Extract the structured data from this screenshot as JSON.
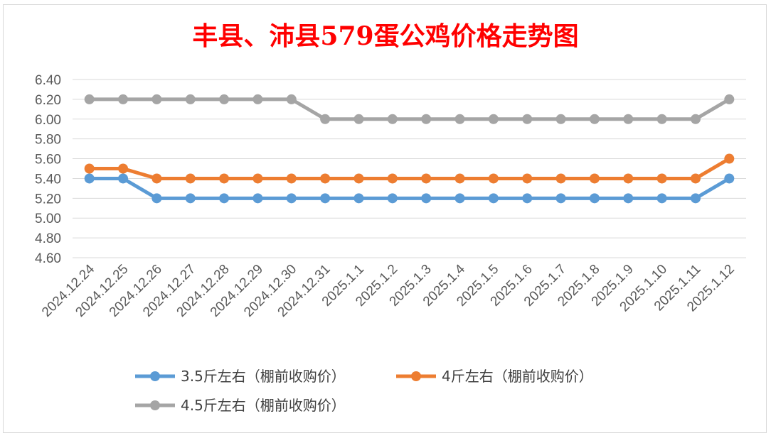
{
  "chart_data": {
    "type": "line",
    "title": "丰县、沛县579蛋公鸡价格走势图",
    "categories": [
      "2024.12.24",
      "2024.12.25",
      "2024.12.26",
      "2024.12.27",
      "2024.12.28",
      "2024.12.29",
      "2024.12.30",
      "2024.12.31",
      "2025.1.1",
      "2025.1.2",
      "2025.1.3",
      "2025.1.4",
      "2025.1.5",
      "2025.1.6",
      "2025.1.7",
      "2025.1.8",
      "2025.1.9",
      "2025.1.10",
      "2025.1.11",
      "2025.1.12"
    ],
    "ylim": [
      4.6,
      6.4
    ],
    "yticks": [
      "6.40",
      "6.20",
      "6.00",
      "5.80",
      "5.60",
      "5.40",
      "5.20",
      "5.00",
      "4.80",
      "4.60"
    ],
    "grid": true,
    "legend_position": "bottom",
    "series": [
      {
        "name": "3.5斤左右（棚前收购价）",
        "color": "#5b9bd5",
        "values": [
          5.4,
          5.4,
          5.2,
          5.2,
          5.2,
          5.2,
          5.2,
          5.2,
          5.2,
          5.2,
          5.2,
          5.2,
          5.2,
          5.2,
          5.2,
          5.2,
          5.2,
          5.2,
          5.2,
          5.4
        ]
      },
      {
        "name": "4斤左右（棚前收购价）",
        "color": "#ed7d31",
        "values": [
          5.5,
          5.5,
          5.4,
          5.4,
          5.4,
          5.4,
          5.4,
          5.4,
          5.4,
          5.4,
          5.4,
          5.4,
          5.4,
          5.4,
          5.4,
          5.4,
          5.4,
          5.4,
          5.4,
          5.6
        ]
      },
      {
        "name": "4.5斤左右（棚前收购价）",
        "color": "#a5a5a5",
        "values": [
          6.2,
          6.2,
          6.2,
          6.2,
          6.2,
          6.2,
          6.2,
          6.0,
          6.0,
          6.0,
          6.0,
          6.0,
          6.0,
          6.0,
          6.0,
          6.0,
          6.0,
          6.0,
          6.0,
          6.2
        ]
      }
    ]
  }
}
